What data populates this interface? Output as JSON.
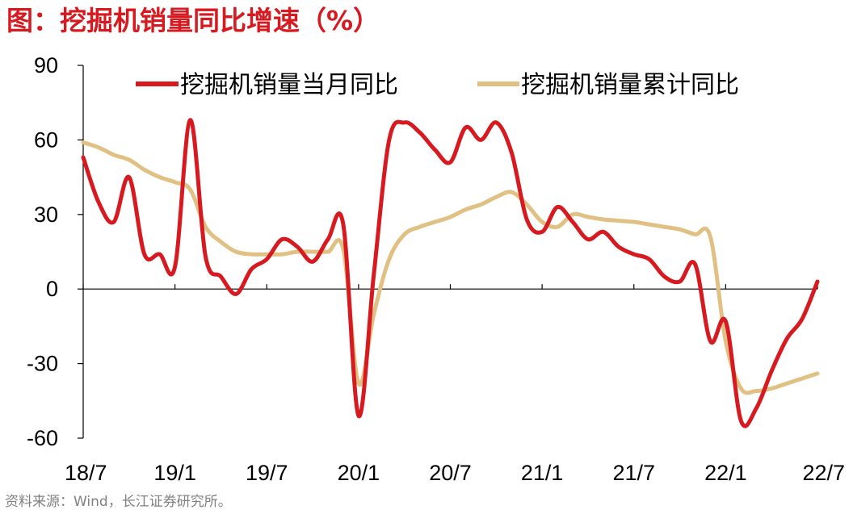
{
  "header": {
    "title": "图：挖掘机销量同比增速（%）"
  },
  "footer": {
    "source": "资料来源：Wind，长江证券研究所。"
  },
  "colors": {
    "series_monthly": "#d71920",
    "series_cumulative": "#e0c083",
    "axis": "#000000",
    "title": "#d71920",
    "source": "#808080"
  },
  "chart_data": {
    "type": "line",
    "title": "",
    "xlabel": "",
    "ylabel": "",
    "ylim": [
      -60,
      90
    ],
    "yticks": [
      90,
      60,
      30,
      0,
      -30,
      -60
    ],
    "ytick_labels": [
      "90",
      "60",
      "30",
      "0",
      "-30",
      "-60"
    ],
    "xtick_labels": [
      "18/7",
      "19/1",
      "19/7",
      "20/1",
      "20/7",
      "21/1",
      "21/7",
      "22/1",
      "22/7"
    ],
    "grid": false,
    "legend_position": "top",
    "x": [
      "2018-07",
      "2018-08",
      "2018-09",
      "2018-10",
      "2018-11",
      "2018-12",
      "2019-01",
      "2019-02",
      "2019-03",
      "2019-04",
      "2019-05",
      "2019-06",
      "2019-07",
      "2019-08",
      "2019-09",
      "2019-10",
      "2019-11",
      "2019-12",
      "2020-01",
      "2020-02",
      "2020-03",
      "2020-04",
      "2020-05",
      "2020-06",
      "2020-07",
      "2020-08",
      "2020-09",
      "2020-10",
      "2020-11",
      "2020-12",
      "2021-01",
      "2021-02",
      "2021-03",
      "2021-04",
      "2021-05",
      "2021-06",
      "2021-07",
      "2021-08",
      "2021-09",
      "2021-10",
      "2021-11",
      "2021-12",
      "2022-01",
      "2022-02",
      "2022-03",
      "2022-04",
      "2022-05",
      "2022-06",
      "2022-07"
    ],
    "series": [
      {
        "name": "挖掘机销量当月同比",
        "values": [
          53,
          35,
          27,
          45,
          14,
          14,
          9,
          68,
          13,
          5,
          -2,
          8,
          12,
          20,
          17,
          11,
          20,
          26,
          -51,
          6,
          60,
          67,
          63,
          56,
          51,
          65,
          60,
          67,
          55,
          28,
          23,
          33,
          27,
          20,
          23,
          17,
          14,
          12,
          5,
          3,
          10,
          -21,
          -13,
          -53,
          -48,
          -33,
          -20,
          -12,
          3
        ]
      },
      {
        "name": "挖掘机销量累计同比",
        "values": [
          59,
          57,
          54,
          52,
          48,
          45,
          43,
          40,
          25,
          19,
          15,
          14,
          14,
          14,
          15,
          15,
          15,
          16,
          -38,
          -10,
          12,
          22,
          25,
          27,
          29,
          32,
          34,
          37,
          39,
          34,
          27,
          25,
          30,
          29,
          28,
          27.5,
          27,
          26,
          25,
          24,
          22,
          21,
          -21,
          -40,
          -41,
          -40,
          -38,
          -36,
          -34
        ]
      }
    ]
  }
}
